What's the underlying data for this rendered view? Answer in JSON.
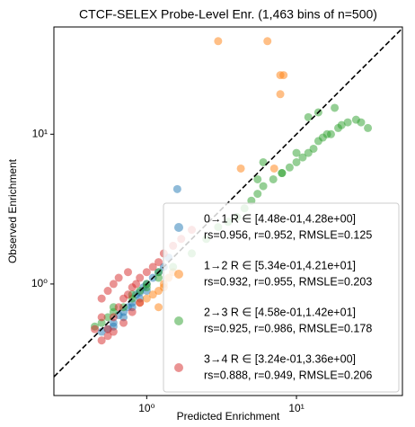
{
  "chart_data": {
    "type": "scatter",
    "title": "CTCF-SELEX Probe-Level Enr. (1,463 bins of n=500)",
    "x_label": "Predicted Enrichment",
    "y_label": "Observed Enrichment",
    "log_x": true,
    "log_y": true,
    "xlim": [
      0.24,
      51
    ],
    "ylim": [
      0.18,
      52
    ],
    "xticks": [
      {
        "value": 1,
        "label": "10⁰"
      },
      {
        "value": 10,
        "label": "10¹"
      }
    ],
    "yticks": [
      {
        "value": 1,
        "label": "10⁰"
      },
      {
        "value": 10,
        "label": "10¹"
      }
    ],
    "identity_line": true,
    "legend": "lower right",
    "series": [
      {
        "name": "0→1 R ∈ [4.48e-01,4.28e+00]",
        "stats": "rs=0.956, r=0.952, RMSLE=0.125",
        "color": "#1f77b4",
        "x": [
          0.5,
          0.55,
          0.6,
          0.65,
          0.7,
          0.75,
          0.8,
          0.85,
          0.9,
          0.95,
          1.0,
          1.1,
          1.2,
          1.3,
          1.4,
          1.6,
          0.6,
          0.7,
          0.8,
          0.9,
          1.0
        ],
        "values": [
          0.48,
          0.5,
          0.55,
          0.62,
          0.65,
          0.7,
          0.75,
          0.85,
          0.88,
          0.95,
          1.0,
          1.1,
          1.2,
          1.3,
          1.5,
          4.3,
          0.52,
          0.6,
          0.7,
          0.8,
          0.9
        ]
      },
      {
        "name": "1→2 R ∈ [5.34e-01,4.21e+01]",
        "stats": "rs=0.932, r=0.955, RMSLE=0.203",
        "color": "#ff7f0e",
        "x": [
          3.0,
          6.4,
          7.8,
          8.2,
          7.8,
          4.25,
          7.1,
          1.2,
          1.3,
          1.1,
          1.4,
          1.5,
          1.0,
          0.9,
          1.2,
          1.3
        ],
        "values": [
          41.8,
          41.8,
          24.8,
          24.8,
          18.5,
          5.9,
          5.9,
          0.9,
          1.0,
          0.85,
          1.1,
          1.2,
          0.8,
          0.75,
          0.7,
          0.95
        ]
      },
      {
        "name": "2→3 R ∈ [4.58e-01,1.42e+01]",
        "stats": "rs=0.925, r=0.986, RMSLE=0.178",
        "color": "#2ca02c",
        "x": [
          0.45,
          0.5,
          0.55,
          0.6,
          0.7,
          0.8,
          0.9,
          1.0,
          1.2,
          1.5,
          2.0,
          2.5,
          3.0,
          3.5,
          4.0,
          4.5,
          5,
          5.5,
          6,
          7,
          8,
          9,
          10,
          11,
          12,
          13,
          14,
          15,
          17,
          19,
          20,
          22,
          25,
          27,
          30,
          12,
          14,
          18,
          16,
          6,
          8,
          5.5,
          10,
          0.6,
          0.8,
          1.0,
          1.2
        ],
        "values": [
          0.52,
          0.55,
          0.6,
          0.65,
          0.7,
          0.8,
          0.9,
          1.0,
          1.1,
          1.3,
          1.6,
          2.0,
          2.4,
          2.6,
          2.8,
          3.2,
          3.6,
          4.0,
          4.5,
          5.0,
          5.5,
          6.0,
          6.5,
          7.0,
          7.5,
          8.0,
          9.0,
          9.5,
          10,
          11,
          11.5,
          12,
          12.5,
          12,
          11,
          13,
          14,
          15,
          10,
          6.5,
          5.5,
          5.0,
          7.5,
          0.7,
          0.85,
          0.95,
          1.2
        ]
      },
      {
        "name": "3→4 R ∈ [3.24e-01,3.36e+00]",
        "stats": "rs=0.888, r=0.949, RMSLE=0.206",
        "color": "#d62728",
        "x": [
          0.45,
          0.5,
          0.5,
          0.55,
          0.55,
          0.6,
          0.6,
          0.65,
          0.7,
          0.75,
          0.8,
          0.85,
          0.9,
          1.0,
          1.1,
          1.2,
          1.3,
          1.5,
          1.7,
          2.0,
          0.5,
          0.55,
          0.6,
          0.7,
          0.8,
          0.9,
          0.65,
          0.75
        ],
        "values": [
          0.5,
          0.6,
          0.8,
          0.5,
          0.9,
          0.6,
          1.0,
          0.7,
          0.8,
          0.85,
          0.95,
          1.0,
          1.1,
          1.2,
          1.3,
          1.4,
          1.6,
          1.8,
          2.0,
          2.3,
          0.42,
          0.45,
          0.48,
          0.55,
          0.65,
          0.75,
          1.1,
          1.2
        ]
      }
    ]
  }
}
